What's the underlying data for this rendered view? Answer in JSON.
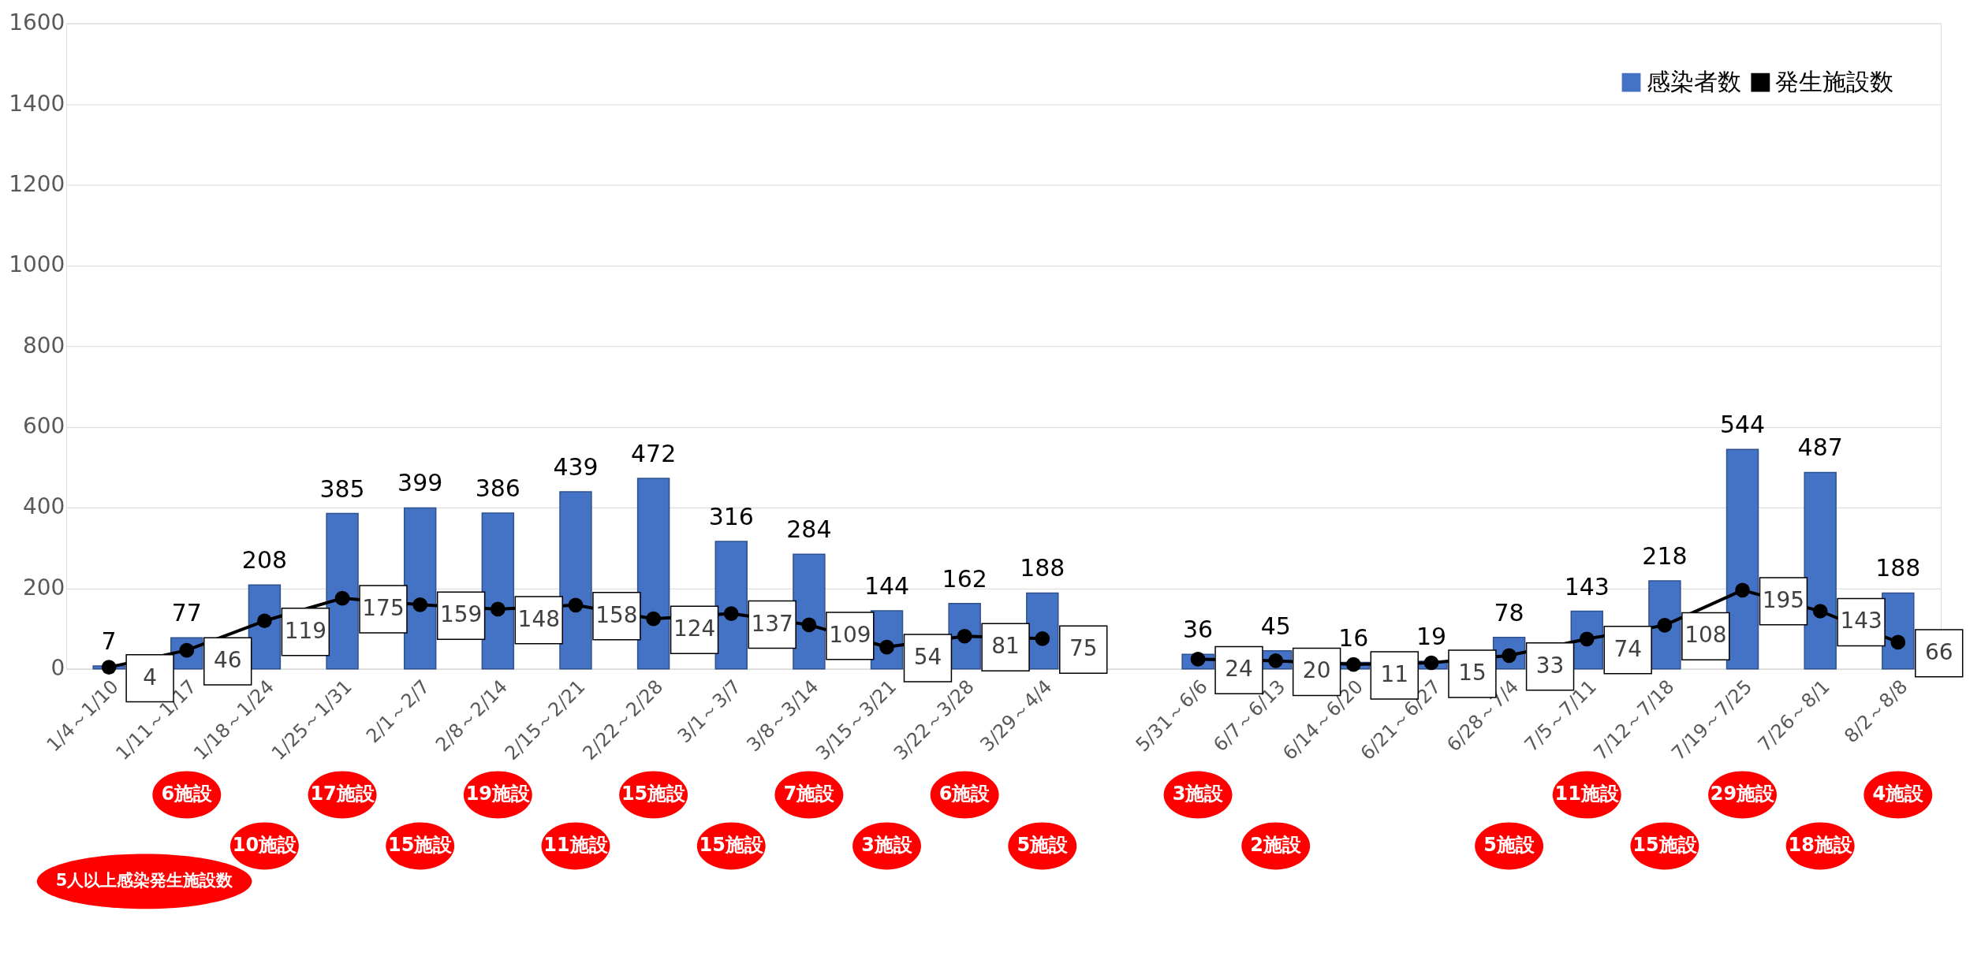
{
  "chart_data": {
    "type": "bar",
    "categories": [
      "1/4～1/10",
      "1/11～1/17",
      "1/18～1/24",
      "1/25～1/31",
      "2/1～2/7",
      "2/8～2/14",
      "2/15～2/21",
      "2/22～2/28",
      "3/1～3/7",
      "3/8～3/14",
      "3/15～3/21",
      "3/22～3/28",
      "3/29～4/4",
      null,
      "5/31～6/6",
      "6/7～6/13",
      "6/14～6/20",
      "6/21～6/27",
      "6/28～7/4",
      "7/5～7/11",
      "7/12～7/18",
      "7/19～7/25",
      "7/26～8/1",
      "8/2～8/8"
    ],
    "series": [
      {
        "name": "感染者数",
        "color": "#4472c4",
        "values": [
          7,
          77,
          208,
          385,
          399,
          386,
          439,
          472,
          316,
          284,
          144,
          162,
          188,
          null,
          36,
          45,
          16,
          19,
          78,
          143,
          218,
          544,
          487,
          188
        ]
      },
      {
        "name": "発生施設数",
        "type": "line",
        "color": "#000000",
        "values": [
          4,
          46,
          119,
          175,
          159,
          148,
          158,
          124,
          137,
          109,
          54,
          81,
          75,
          null,
          24,
          20,
          11,
          15,
          33,
          74,
          108,
          195,
          143,
          66
        ]
      }
    ],
    "ylim": [
      0,
      1600
    ],
    "yticks": [
      0,
      200,
      400,
      600,
      800,
      1000,
      1200,
      1400,
      1600
    ],
    "grid": "y",
    "legend": "top right",
    "marker": "circle",
    "line_style": "solid",
    "data_labels": true,
    "annotations": [
      "5人以上感染発生施設数",
      "6施設",
      "10施設",
      "17施設",
      "15施設",
      "19施設",
      "11施設",
      "15施設",
      "15施設",
      "7施設",
      "3施設",
      "6施設",
      "5施設",
      "3施設",
      "2施設",
      "5施設",
      "11施設",
      "15施設",
      "29施設",
      "18施設",
      "4施設"
    ]
  }
}
